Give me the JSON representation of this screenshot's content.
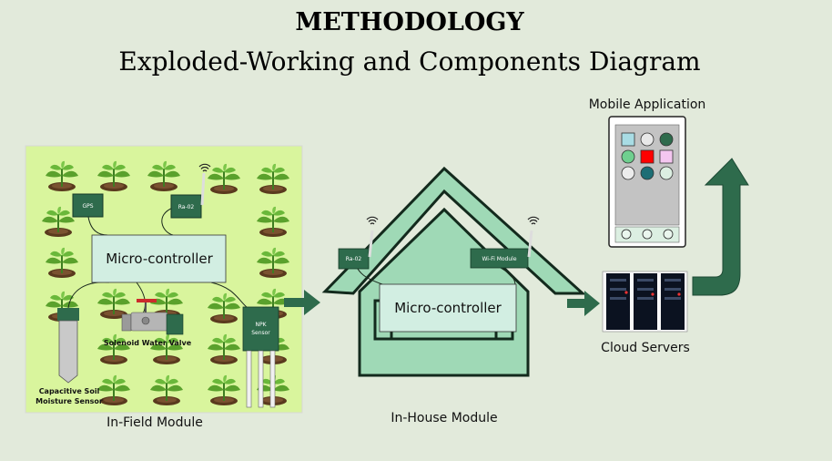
{
  "title": "METHODOLOGY",
  "subtitle": "Exploded-Working and Components Diagram",
  "field": {
    "label": "In-Field Module",
    "microcontroller": "Micro-controller",
    "gps": "GPS",
    "lora": "Ra-02",
    "npk_line1": "NPK",
    "npk_line2": "Sensor",
    "valve": "Solenoid Water Valve",
    "soil_line1": "Capacitive Soil",
    "soil_line2": "Moisture Sensor"
  },
  "house": {
    "label": "In-House Module",
    "microcontroller": "Micro-controller",
    "lora": "Ra-02",
    "wifi": "Wi-Fi Module"
  },
  "cloud": {
    "label": "Cloud Servers"
  },
  "mobile": {
    "label": "Mobile Application",
    "grid_colors": [
      "#a8dce4",
      "#e8e8e8",
      "#2e6b4c",
      "#6fcf8f",
      "#ff0000",
      "#f4c6f0",
      "#ececec",
      "#1d6e75",
      "#dcefe2"
    ]
  },
  "colors": {
    "background": "#e2eadb",
    "field": "#d9f59d",
    "module": "#2e6b4c",
    "house_fill": "#9fd9b6",
    "house_stroke": "#132a1d",
    "controller_box": "#d2eee2",
    "arrow": "#2e6b4c"
  }
}
